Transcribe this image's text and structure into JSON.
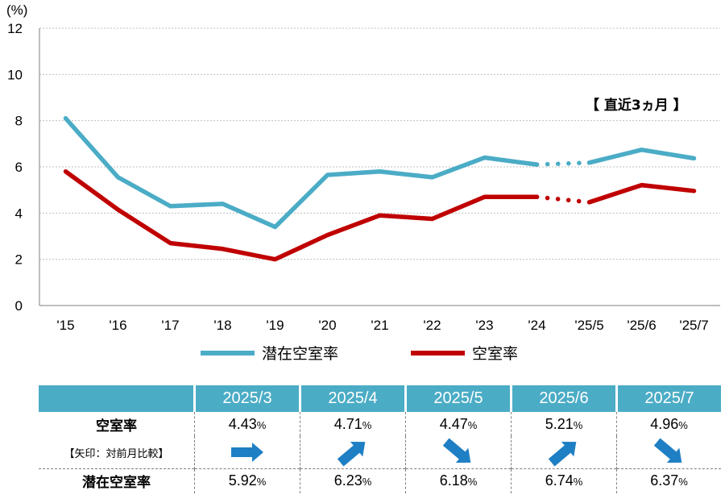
{
  "chart_data": {
    "type": "line",
    "y_unit": "(%)",
    "ylim": [
      0,
      12
    ],
    "yticks": [
      "0",
      "2",
      "4",
      "6",
      "8",
      "10",
      "12"
    ],
    "categories": [
      "'15",
      "'16",
      "'17",
      "'18",
      "'19",
      "'20",
      "'21",
      "'22",
      "'23",
      "'24",
      "'25/5",
      "'25/6",
      "'25/7"
    ],
    "period_label": "【 直近3ヵ月 】",
    "grid": true,
    "legend_position": "bottom",
    "series": [
      {
        "name": "潜在空室率",
        "color": "#4bacc6",
        "values": [
          8.1,
          5.55,
          4.3,
          4.4,
          3.4,
          5.65,
          5.8,
          5.55,
          6.4,
          6.1,
          6.18,
          6.74,
          6.37
        ]
      },
      {
        "name": "空室率",
        "color": "#c00000",
        "values": [
          5.8,
          4.15,
          2.7,
          2.45,
          2.0,
          3.05,
          3.9,
          3.75,
          4.7,
          4.7,
          4.47,
          5.21,
          4.96
        ]
      }
    ]
  },
  "table": {
    "months": [
      "2025/3",
      "2025/4",
      "2025/5",
      "2025/6",
      "2025/7"
    ],
    "vacancy_label": "空室率",
    "arrow_note": "【矢印：対前月比較】",
    "potential_label": "潜在空室率",
    "pct_sign": "%",
    "vacancy": [
      "4.43",
      "4.71",
      "4.47",
      "5.21",
      "4.96"
    ],
    "potential": [
      "5.92",
      "6.23",
      "6.18",
      "6.74",
      "6.37"
    ],
    "arrows": [
      "flat-arrow-icon",
      "up-arrow-icon",
      "down-arrow-icon",
      "up-arrow-icon",
      "down-arrow-icon"
    ],
    "arrow_color": "#1f7fc4"
  }
}
